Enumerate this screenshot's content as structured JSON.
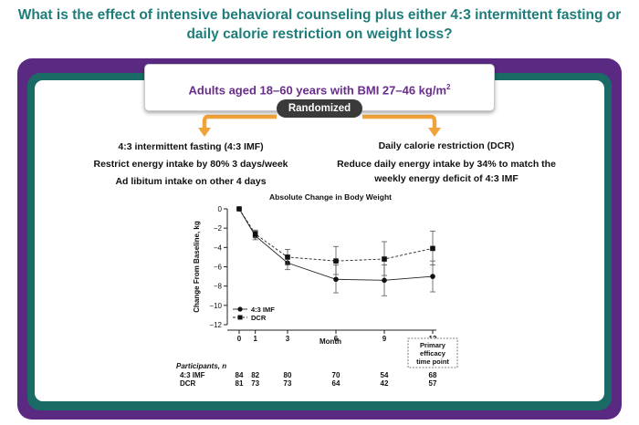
{
  "question": {
    "line1": "What is the effect of intensive behavioral counseling plus either 4:3 intermittent fasting or",
    "line2": "daily calorie restriction on weight loss?"
  },
  "population": {
    "text": "Adults aged 18–60 years with BMI 27–46 kg/m",
    "superscript": "2"
  },
  "randomized_label": "Randomized",
  "arms": {
    "left": {
      "title": "4:3 intermittent fasting (4:3 IMF)",
      "line2": "Restrict energy intake by 80% 3 days/week",
      "line3": "Ad libitum intake on other 4 days"
    },
    "right": {
      "title": "Daily calorie restriction (DCR)",
      "line2": "Reduce daily energy intake by 34% to match the",
      "line3": "weekly energy deficit of 4:3 IMF"
    }
  },
  "colors": {
    "accent_teal": "#1e7d7a",
    "frame_purple": "#5a2a82",
    "frame_teal": "#1a6b66",
    "arrow_orange": "#f0a33a",
    "population_text": "#6a2d8d"
  },
  "chart_data": {
    "type": "line",
    "title": "Absolute Change in Body Weight",
    "xlabel": "Month",
    "ylabel": "Change From Baseline, kg",
    "x": [
      0,
      1,
      3,
      6,
      9,
      12
    ],
    "x_tick_labels": [
      "0",
      "1",
      "3",
      "6",
      "9",
      "12"
    ],
    "xlim": [
      0,
      12
    ],
    "ylim": [
      -12,
      0
    ],
    "y_ticks": [
      0,
      -2,
      -4,
      -6,
      -8,
      -10,
      -12
    ],
    "y_tick_labels": [
      "0",
      "−2",
      "−4",
      "−6",
      "−8",
      "−10",
      "−12"
    ],
    "grid": false,
    "legend_position": "bottom-left",
    "series": [
      {
        "name": "4:3 IMF",
        "marker": "circle",
        "line_style": "solid",
        "values": [
          0,
          -2.8,
          -5.6,
          -7.3,
          -7.4,
          -7.0
        ],
        "error_low": [
          0,
          -3.2,
          -6.3,
          -8.7,
          -9.0,
          -8.6
        ],
        "error_high": [
          0,
          -2.3,
          -4.9,
          -5.8,
          -5.8,
          -5.4
        ]
      },
      {
        "name": "DCR",
        "marker": "square",
        "line_style": "dashed",
        "values": [
          0,
          -2.6,
          -5.0,
          -5.4,
          -5.2,
          -4.1
        ],
        "error_low": [
          0,
          -3.0,
          -5.8,
          -6.8,
          -6.9,
          -5.8
        ],
        "error_high": [
          0,
          -2.2,
          -4.2,
          -3.9,
          -3.4,
          -2.3
        ]
      }
    ],
    "annotation": {
      "line1": "Primary",
      "line2": "efficacy",
      "line3": "time point"
    },
    "participants": {
      "header": "Participants, n",
      "rows": [
        {
          "label": "4:3 IMF",
          "counts": [
            "84",
            "82",
            "80",
            "70",
            "54",
            "68"
          ]
        },
        {
          "label": "DCR",
          "counts": [
            "81",
            "73",
            "73",
            "64",
            "42",
            "57"
          ]
        }
      ]
    }
  }
}
